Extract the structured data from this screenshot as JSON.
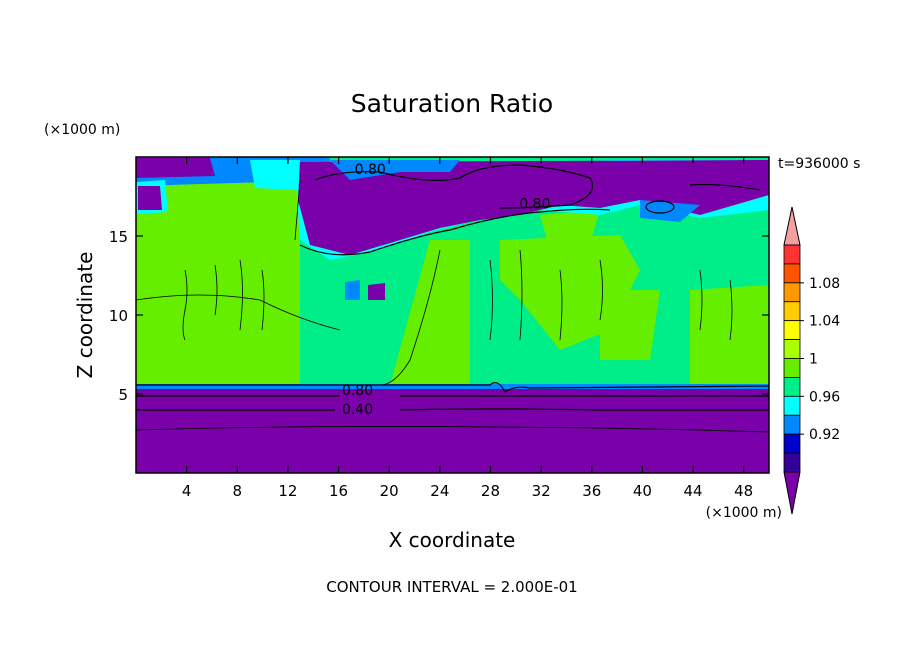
{
  "chart_data": {
    "type": "contour",
    "title": "Saturation Ratio",
    "xlabel": "X coordinate",
    "ylabel": "Z coordinate",
    "x_unit_label": "(×1000 m)",
    "y_unit_label": "(×1000 m)",
    "time_label": "t=936000 s",
    "footer": "CONTOUR INTERVAL = 2.000E-01",
    "xlim": [
      0,
      50
    ],
    "ylim": [
      0,
      20
    ],
    "x_ticks": [
      4,
      8,
      12,
      16,
      20,
      24,
      28,
      32,
      36,
      40,
      44,
      48
    ],
    "y_ticks": [
      5,
      10,
      15
    ],
    "contour_labels": [
      {
        "text": "0.80",
        "x": 18.5,
        "z": 19.0
      },
      {
        "text": "0.80",
        "x": 31.5,
        "z": 16.8
      },
      {
        "text": "0.80",
        "x": 17.5,
        "z": 5.0
      },
      {
        "text": "0.40",
        "x": 17.5,
        "z": 3.8
      }
    ],
    "colorbar": {
      "tick_labels": [
        "1.08",
        "1.04",
        "1",
        "0.96",
        "0.92"
      ],
      "levels": [
        1.1,
        1.09,
        1.08,
        1.07,
        1.06,
        1.05,
        1.04,
        1.03,
        1.02,
        1.01,
        1.0,
        0.99,
        0.98,
        0.97,
        0.96,
        0.95,
        0.94,
        0.93,
        0.92,
        0.91
      ],
      "colors": [
        "#f5a0a0",
        "#ff3333",
        "#ff5500",
        "#ff9900",
        "#ffcc00",
        "#ffff00",
        "#aaff00",
        "#66ee00",
        "#00ee88",
        "#00ffff",
        "#0088ff",
        "#0000cc",
        "#330099",
        "#7a00aa"
      ]
    }
  }
}
